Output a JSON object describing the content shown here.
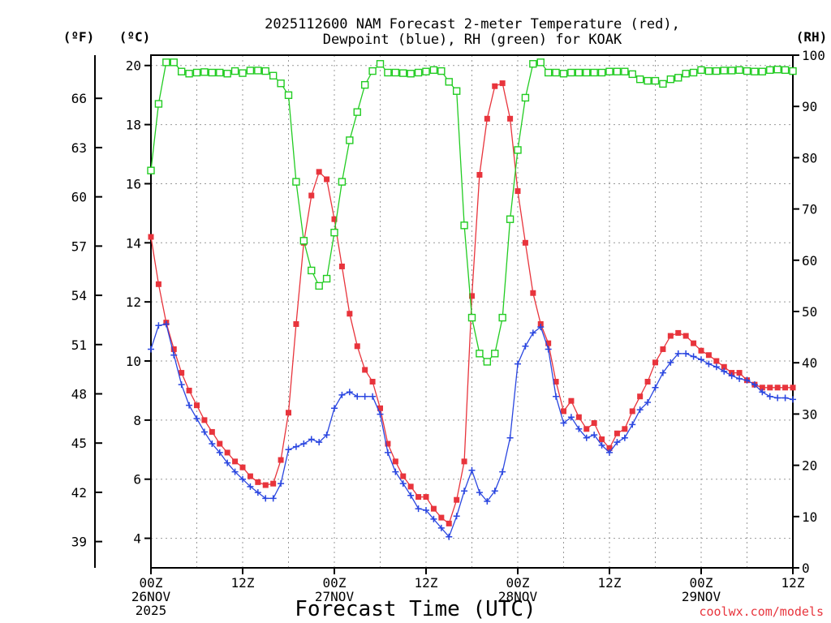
{
  "chart_data": {
    "type": "line",
    "title_line1": "2025112600 NAM Forecast 2-meter Temperature (red),",
    "title_line2": "Dewpoint (blue), RH (green) for KOAK",
    "xlabel": "Forecast Time (UTC)",
    "credit": "coolwx.com/models",
    "unit_f": "(ºF)",
    "unit_c": "(ºC)",
    "unit_rh": "(RH)",
    "x_range_hours": [
      0,
      84
    ],
    "y_celsius_range": [
      3,
      20.35
    ],
    "y_rh_range": [
      0,
      100
    ],
    "celsius_ticks": [
      "20",
      "18",
      "16",
      "14",
      "12",
      "10",
      "8",
      "6",
      "4"
    ],
    "celsius_tick_values": [
      20,
      18,
      16,
      14,
      12,
      10,
      8,
      6,
      4
    ],
    "fahrenheit_ticks": [
      "66",
      "63",
      "60",
      "57",
      "54",
      "51",
      "48",
      "45",
      "42",
      "39"
    ],
    "fahrenheit_tick_values": [
      66,
      63,
      60,
      57,
      54,
      51,
      48,
      45,
      42,
      39
    ],
    "rh_ticks": [
      "100",
      "90",
      "80",
      "70",
      "60",
      "50",
      "40",
      "30",
      "20",
      "10",
      "0"
    ],
    "rh_tick_values": [
      100,
      90,
      80,
      70,
      60,
      50,
      40,
      30,
      20,
      10,
      0
    ],
    "x_ticks": [
      {
        "hour": 0,
        "lines": [
          "00Z",
          "26NOV",
          "2025"
        ]
      },
      {
        "hour": 12,
        "lines": [
          "12Z"
        ]
      },
      {
        "hour": 24,
        "lines": [
          "00Z",
          "27NOV"
        ]
      },
      {
        "hour": 36,
        "lines": [
          "12Z"
        ]
      },
      {
        "hour": 48,
        "lines": [
          "00Z",
          "28NOV"
        ]
      },
      {
        "hour": 60,
        "lines": [
          "12Z"
        ]
      },
      {
        "hour": 72,
        "lines": [
          "00Z",
          "29NOV"
        ]
      },
      {
        "hour": 84,
        "lines": [
          "12Z"
        ]
      }
    ],
    "series": [
      {
        "name": "Temperature",
        "units": "C",
        "color": "#e8343c",
        "marker": "filled-square",
        "x": [
          0,
          1,
          2,
          3,
          4,
          5,
          6,
          7,
          8,
          9,
          10,
          11,
          12,
          13,
          14,
          15,
          16,
          17,
          18,
          19,
          20,
          21,
          22,
          23,
          24,
          25,
          26,
          27,
          28,
          29,
          30,
          31,
          32,
          33,
          34,
          35,
          36,
          37,
          38,
          39,
          40,
          41,
          42,
          43,
          44,
          45,
          46,
          47,
          48,
          49,
          50,
          51,
          52,
          53,
          54,
          55,
          56,
          57,
          58,
          59,
          60,
          61,
          62,
          63,
          64,
          65,
          66,
          67,
          68,
          69,
          70,
          71,
          72,
          73,
          74,
          75,
          76,
          77,
          78,
          79,
          80,
          81,
          82,
          83,
          84
        ],
        "values": [
          14.2,
          12.6,
          11.3,
          10.4,
          9.6,
          9.0,
          8.5,
          8.0,
          7.6,
          7.2,
          6.9,
          6.6,
          6.4,
          6.1,
          5.9,
          5.8,
          5.85,
          6.65,
          8.25,
          11.25,
          14.0,
          15.6,
          16.4,
          16.15,
          14.8,
          13.2,
          11.6,
          10.5,
          9.7,
          9.3,
          8.4,
          7.2,
          6.6,
          6.1,
          5.75,
          5.4,
          5.4,
          5.0,
          4.7,
          4.5,
          5.3,
          6.6,
          12.2,
          16.3,
          18.2,
          19.3,
          19.4,
          18.2,
          15.75,
          14.0,
          12.3,
          11.25,
          10.6,
          9.3,
          8.3,
          8.65,
          8.1,
          7.7,
          7.9,
          7.35,
          7.05,
          7.55,
          7.7,
          8.3,
          8.8,
          9.3,
          9.95,
          10.4,
          10.85,
          10.95,
          10.85,
          10.6,
          10.35,
          10.2,
          10.0,
          9.8,
          9.6,
          9.6,
          9.35,
          9.2,
          9.1,
          9.1,
          9.1,
          9.1,
          9.1
        ]
      },
      {
        "name": "Dewpoint",
        "units": "C",
        "color": "#2a46e0",
        "marker": "plus",
        "x": [
          0,
          1,
          2,
          3,
          4,
          5,
          6,
          7,
          8,
          9,
          10,
          11,
          12,
          13,
          14,
          15,
          16,
          17,
          18,
          19,
          20,
          21,
          22,
          23,
          24,
          25,
          26,
          27,
          28,
          29,
          30,
          31,
          32,
          33,
          34,
          35,
          36,
          37,
          38,
          39,
          40,
          41,
          42,
          43,
          44,
          45,
          46,
          47,
          48,
          49,
          50,
          51,
          52,
          53,
          54,
          55,
          56,
          57,
          58,
          59,
          60,
          61,
          62,
          63,
          64,
          65,
          66,
          67,
          68,
          69,
          70,
          71,
          72,
          73,
          74,
          75,
          76,
          77,
          78,
          79,
          80,
          81,
          82,
          83,
          84
        ],
        "values": [
          10.4,
          11.2,
          11.25,
          10.2,
          9.2,
          8.5,
          8.05,
          7.6,
          7.2,
          6.9,
          6.55,
          6.25,
          6.0,
          5.75,
          5.55,
          5.35,
          5.35,
          5.85,
          7.0,
          7.1,
          7.2,
          7.35,
          7.25,
          7.5,
          8.4,
          8.85,
          8.95,
          8.8,
          8.8,
          8.8,
          8.2,
          6.9,
          6.25,
          5.85,
          5.45,
          5.0,
          4.95,
          4.65,
          4.35,
          4.05,
          4.75,
          5.6,
          6.3,
          5.55,
          5.25,
          5.6,
          6.25,
          7.4,
          9.9,
          10.5,
          10.95,
          11.15,
          10.4,
          8.8,
          7.9,
          8.1,
          7.7,
          7.4,
          7.5,
          7.15,
          6.9,
          7.25,
          7.4,
          7.85,
          8.35,
          8.6,
          9.1,
          9.6,
          9.95,
          10.25,
          10.25,
          10.15,
          10.05,
          9.9,
          9.8,
          9.65,
          9.5,
          9.4,
          9.35,
          9.2,
          8.95,
          8.8,
          8.75,
          8.75,
          8.7
        ]
      },
      {
        "name": "RH",
        "units": "%",
        "color": "#22cc22",
        "marker": "open-square",
        "x": [
          0,
          1,
          2,
          3,
          4,
          5,
          6,
          7,
          8,
          9,
          10,
          11,
          12,
          13,
          14,
          15,
          16,
          17,
          18,
          19,
          20,
          21,
          22,
          23,
          24,
          25,
          26,
          27,
          28,
          29,
          30,
          31,
          32,
          33,
          34,
          35,
          36,
          37,
          38,
          39,
          40,
          41,
          42,
          43,
          44,
          45,
          46,
          47,
          48,
          49,
          50,
          51,
          52,
          53,
          54,
          55,
          56,
          57,
          58,
          59,
          60,
          61,
          62,
          63,
          64,
          65,
          66,
          67,
          68,
          69,
          70,
          71,
          72,
          73,
          74,
          75,
          76,
          77,
          78,
          79,
          80,
          81,
          82,
          83,
          84
        ],
        "values": [
          77.5,
          90.5,
          98.6,
          98.6,
          96.8,
          96.4,
          96.6,
          96.7,
          96.6,
          96.6,
          96.4,
          96.9,
          96.5,
          97.0,
          97.0,
          96.9,
          96.0,
          94.5,
          92.2,
          75.3,
          63.8,
          58.0,
          55.0,
          56.4,
          65.4,
          75.3,
          83.4,
          88.9,
          94.2,
          96.9,
          98.3,
          96.6,
          96.6,
          96.5,
          96.4,
          96.6,
          96.8,
          97.1,
          96.9,
          94.8,
          93.0,
          66.8,
          48.8,
          41.8,
          40.2,
          41.8,
          48.8,
          68.0,
          81.5,
          91.7,
          98.3,
          98.6,
          96.6,
          96.6,
          96.4,
          96.6,
          96.6,
          96.6,
          96.6,
          96.6,
          96.8,
          96.8,
          96.8,
          96.3,
          95.3,
          95.0,
          95.0,
          94.4,
          95.3,
          95.6,
          96.4,
          96.6,
          97.1,
          96.9,
          96.9,
          97.0,
          97.0,
          97.1,
          96.9,
          96.8,
          96.8,
          97.1,
          97.2,
          97.1,
          96.9
        ]
      }
    ]
  }
}
